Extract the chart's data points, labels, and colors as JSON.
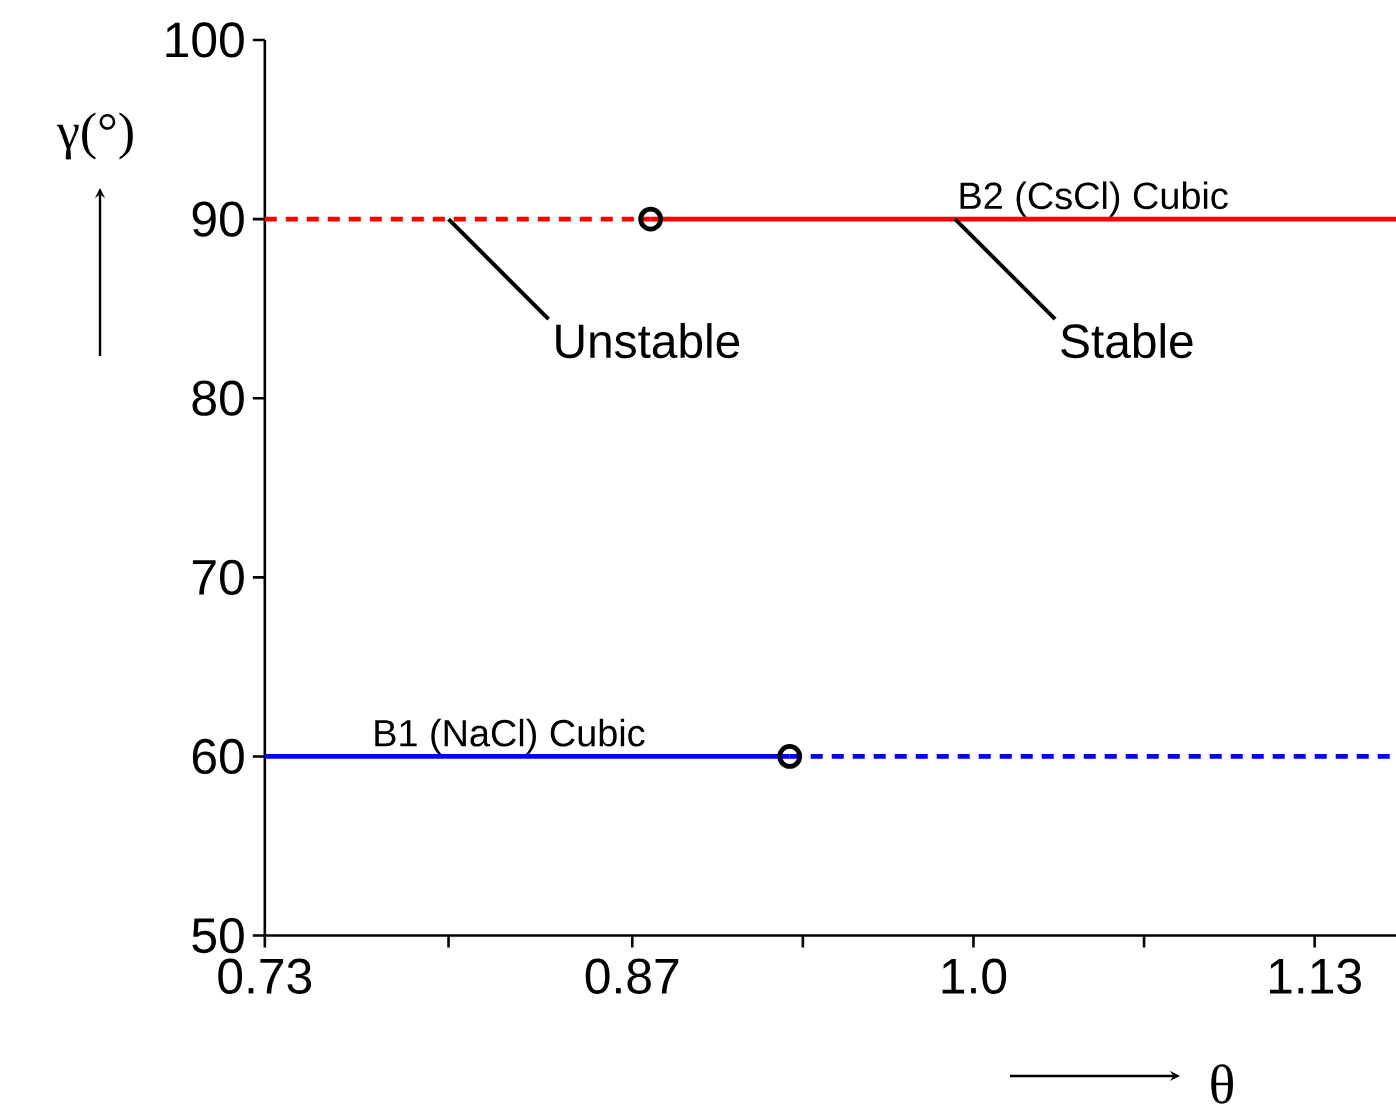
{
  "chart_data": {
    "type": "line",
    "xlabel": "θ",
    "ylabel": "γ(°)",
    "xlim": [
      0.73,
      1.161
    ],
    "ylim": [
      50,
      100
    ],
    "xticks": [
      0.73,
      {
        "value": 0.8,
        "label": null
      },
      0.87,
      {
        "value": 0.935,
        "label": null
      },
      {
        "value": 1.0,
        "label": "1.0"
      },
      {
        "value": 1.065,
        "label": null
      },
      1.13
    ],
    "yticks": [
      50,
      60,
      70,
      80,
      90,
      100
    ],
    "marker": "none",
    "series": [
      {
        "color": "#ff0000",
        "line_style": "dashed",
        "x": [
          0.73,
          0.877
        ],
        "values": [
          90,
          90
        ]
      },
      {
        "color": "#ff0000",
        "line_style": "solid",
        "x": [
          0.877,
          1.161
        ],
        "values": [
          90,
          90
        ]
      },
      {
        "color": "#0000ff",
        "line_style": "solid",
        "x": [
          0.73,
          0.93
        ],
        "values": [
          60,
          60
        ]
      },
      {
        "color": "#0000ff",
        "line_style": "dashed",
        "x": [
          0.93,
          1.161
        ],
        "values": [
          60,
          60
        ]
      },
      {
        "type": "scatter",
        "marker": "circle",
        "color": "#000000",
        "x": [
          0.877,
          0.93
        ],
        "values": [
          90,
          60
        ]
      }
    ],
    "annotations": [
      {
        "text": "Unstable",
        "x": 0.8,
        "y": 90
      },
      {
        "text": "Stable",
        "x": 0.993,
        "y": 90
      },
      {
        "text": "B2 (CsCl) Cubic",
        "x": 0.993,
        "y": 90
      },
      {
        "text": "B1 (NaCl) Cubic",
        "x": 0.77,
        "y": 60
      }
    ]
  }
}
